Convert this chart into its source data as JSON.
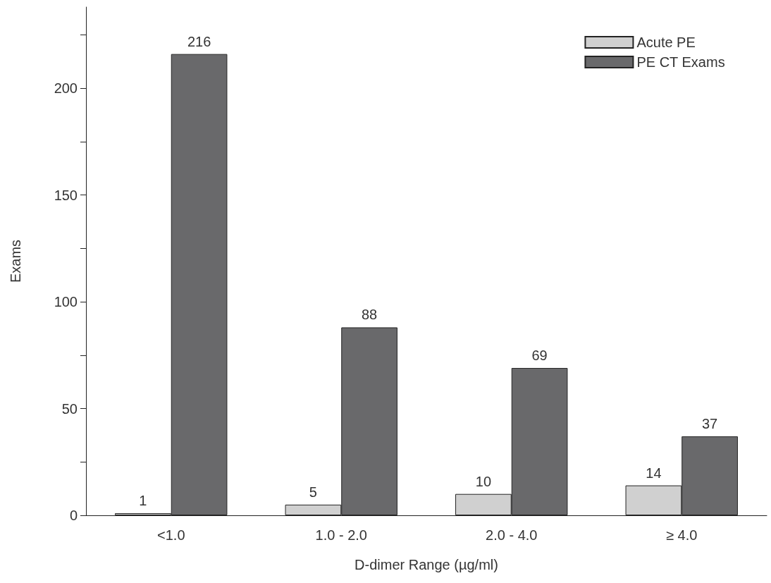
{
  "chart_data": {
    "type": "bar",
    "xlabel": "D-dimer Range (µg/ml)",
    "ylabel": "Exams",
    "categories": [
      "<1.0",
      "1.0 - 2.0",
      "2.0 - 4.0",
      "≥ 4.0"
    ],
    "series": [
      {
        "name": "Acute PE",
        "color": "#d0d0d0",
        "values": [
          1,
          5,
          10,
          14
        ]
      },
      {
        "name": "PE CT Exams",
        "color": "#69696b",
        "values": [
          216,
          88,
          69,
          37
        ]
      }
    ],
    "ylim": [
      0,
      238
    ],
    "yticks": [
      0,
      {
        "value": 25,
        "label": null
      },
      50,
      {
        "value": 75,
        "label": null
      },
      100,
      {
        "value": 125,
        "label": null
      },
      150,
      {
        "value": 175,
        "label": null
      },
      200,
      {
        "value": 225,
        "label": null
      }
    ],
    "data_labels": true,
    "legend": "top right",
    "grid": false
  }
}
